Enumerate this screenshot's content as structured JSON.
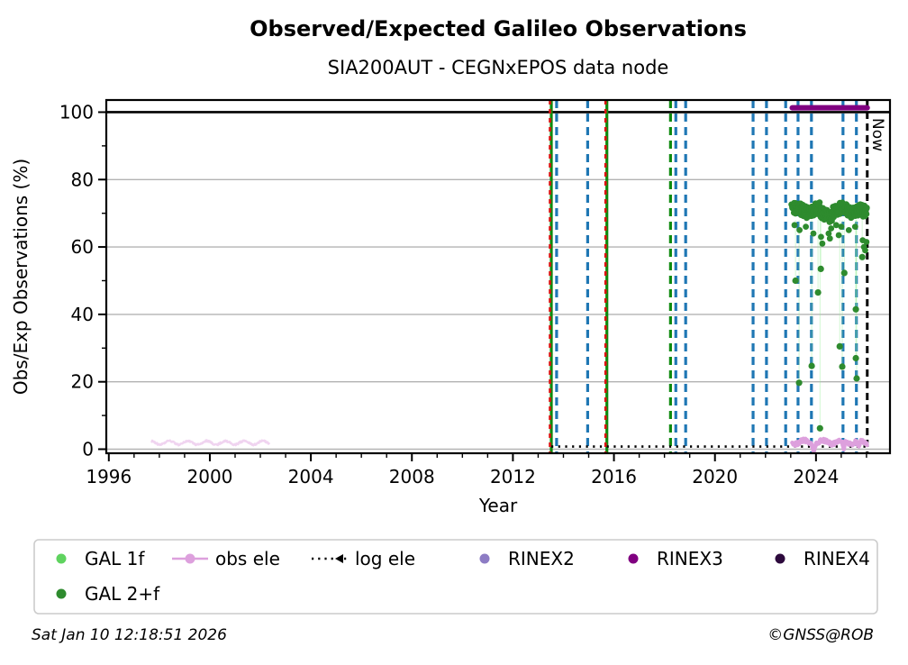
{
  "header": {
    "title": "Observed/Expected Galileo Observations",
    "subtitle": "SIA200AUT - CEGNxEPOS data node"
  },
  "footer": {
    "timestamp": "Sat Jan 10 12:18:51 2026",
    "copyright": "©GNSS@ROB"
  },
  "colors": {
    "grid": "#b3b3b3",
    "spine": "#000000",
    "event_blue": "#1f77b4",
    "event_green": "#0e8a0e",
    "event_red": "#dd1111",
    "now_line": "#000000",
    "reference_100": "#000000",
    "gal1f": "#5fd35f",
    "gal2f": "#2e8b2e",
    "obs_ele": "#dda0dd",
    "log_ele": "#000000",
    "rinex2": "#8d7cc4",
    "rinex3": "#800080",
    "rinex4": "#2d0a3d"
  },
  "chart_data": {
    "type": "scatter",
    "title": "Observed/Expected Galileo Observations",
    "subtitle": "SIA200AUT - CEGNxEPOS data node",
    "xlabel": "Year",
    "ylabel": "Obs/Exp Observations (%)",
    "xlim": [
      1995.9,
      2026.93
    ],
    "ylim": [
      -1.2,
      103.6
    ],
    "xticks": [
      1996,
      2000,
      2004,
      2008,
      2012,
      2016,
      2020,
      2024
    ],
    "yticks": [
      0,
      20,
      40,
      60,
      80,
      100
    ],
    "minor_x_step": 1,
    "minor_y_step": 10,
    "grid": "horizontal-major-grey",
    "reference_line": {
      "y": 100,
      "color": "#000000"
    },
    "now": {
      "year": 2026.03,
      "label": "Now"
    },
    "events": [
      {
        "year": 2013.52,
        "kind": "green-solid-red-dashed"
      },
      {
        "year": 2013.73,
        "kind": "blue-dashed"
      },
      {
        "year": 2014.96,
        "kind": "blue-dashed"
      },
      {
        "year": 2015.72,
        "kind": "green-solid-red-dashed"
      },
      {
        "year": 2018.24,
        "kind": "green-dashed"
      },
      {
        "year": 2018.45,
        "kind": "blue-dashed"
      },
      {
        "year": 2018.84,
        "kind": "blue-dashed"
      },
      {
        "year": 2021.51,
        "kind": "blue-dashed"
      },
      {
        "year": 2022.04,
        "kind": "blue-dashed"
      },
      {
        "year": 2022.8,
        "kind": "blue-dashed"
      },
      {
        "year": 2023.29,
        "kind": "blue-dashed"
      },
      {
        "year": 2023.82,
        "kind": "blue-dashed"
      },
      {
        "year": 2025.07,
        "kind": "blue-dashed"
      },
      {
        "year": 2025.6,
        "kind": "blue-dashed"
      }
    ],
    "series": [
      {
        "name": "GAL 1f",
        "type": "scatter",
        "color": "#5fd35f",
        "points": []
      },
      {
        "name": "GAL 2+f",
        "type": "scatter",
        "color": "#2e8b2e",
        "cluster": {
          "x_start": 2023.06,
          "x_end": 2026.02,
          "y_center": 70.9,
          "y_spread": 3.4,
          "dip_x": [
            2024.2,
            2024.62
          ],
          "dip_amount": 1.2
        },
        "fringe": [
          [
            2023.15,
            66.5
          ],
          [
            2023.35,
            65.0
          ],
          [
            2023.6,
            66.0
          ],
          [
            2023.9,
            64.0
          ],
          [
            2024.2,
            63.0
          ],
          [
            2024.25,
            61.0
          ],
          [
            2024.5,
            64.0
          ],
          [
            2024.55,
            62.5
          ],
          [
            2024.6,
            65.5
          ],
          [
            2024.8,
            66.5
          ],
          [
            2024.9,
            63.5
          ],
          [
            2025.0,
            66.0
          ],
          [
            2025.3,
            65.0
          ],
          [
            2025.55,
            66.0
          ],
          [
            2025.85,
            62.0
          ],
          [
            2025.9,
            60.0
          ],
          [
            2025.95,
            59.0
          ],
          [
            2026.0,
            61.5
          ]
        ],
        "outliers": [
          [
            2023.19,
            50.0
          ],
          [
            2023.33,
            19.7
          ],
          [
            2023.83,
            24.7
          ],
          [
            2024.08,
            46.5
          ],
          [
            2024.16,
            6.2
          ],
          [
            2024.19,
            53.5
          ],
          [
            2024.94,
            30.5
          ],
          [
            2025.04,
            24.5
          ],
          [
            2025.12,
            52.3
          ],
          [
            2025.58,
            41.5
          ],
          [
            2025.58,
            27.0
          ],
          [
            2025.61,
            21.0
          ],
          [
            2025.83,
            57.0
          ]
        ]
      },
      {
        "name": "obs ele",
        "type": "line",
        "color": "#dda0dd",
        "segments": [
          {
            "x_start": 1997.7,
            "x_end": 2002.35,
            "y": 1.9,
            "faint": true
          },
          {
            "x_start": 2023.06,
            "x_end": 2026.02,
            "y": 2.1,
            "faint": false,
            "dips_to_zero_at": [
              2023.92,
              2025.09,
              2025.7
            ]
          }
        ]
      },
      {
        "name": "log ele",
        "type": "dotted-line",
        "color": "#000000",
        "segments": [
          {
            "x_start": 2013.52,
            "x_end": 2026.03,
            "y": 0.8
          }
        ]
      },
      {
        "name": "RINEX2",
        "type": "line",
        "color": "#8d7cc4",
        "segments": []
      },
      {
        "name": "RINEX3",
        "type": "line",
        "color": "#800080",
        "segments": [
          {
            "x_start": 2023.06,
            "x_end": 2026.03,
            "y": 101.3
          }
        ]
      },
      {
        "name": "RINEX4",
        "type": "line",
        "color": "#2d0a3d",
        "segments": []
      }
    ],
    "legend": {
      "position": "below-axes",
      "items": [
        {
          "label": "GAL 1f",
          "glyph": "dot",
          "color": "#5fd35f",
          "col": 0,
          "row": 0
        },
        {
          "label": "GAL 2+f",
          "glyph": "dot",
          "color": "#2e8b2e",
          "col": 0,
          "row": 1
        },
        {
          "label": "obs ele",
          "glyph": "line-dot",
          "color": "#dda0dd",
          "col": 1,
          "row": 0
        },
        {
          "label": "log ele",
          "glyph": "dotted-line-mark",
          "color": "#000000",
          "col": 2,
          "row": 0
        },
        {
          "label": "RINEX2",
          "glyph": "dot",
          "color": "#8d7cc4",
          "col": 3,
          "row": 0
        },
        {
          "label": "RINEX3",
          "glyph": "dot",
          "color": "#800080",
          "col": 4,
          "row": 0
        },
        {
          "label": "RINEX4",
          "glyph": "dot",
          "color": "#2d0a3d",
          "col": 5,
          "row": 0
        }
      ]
    }
  }
}
